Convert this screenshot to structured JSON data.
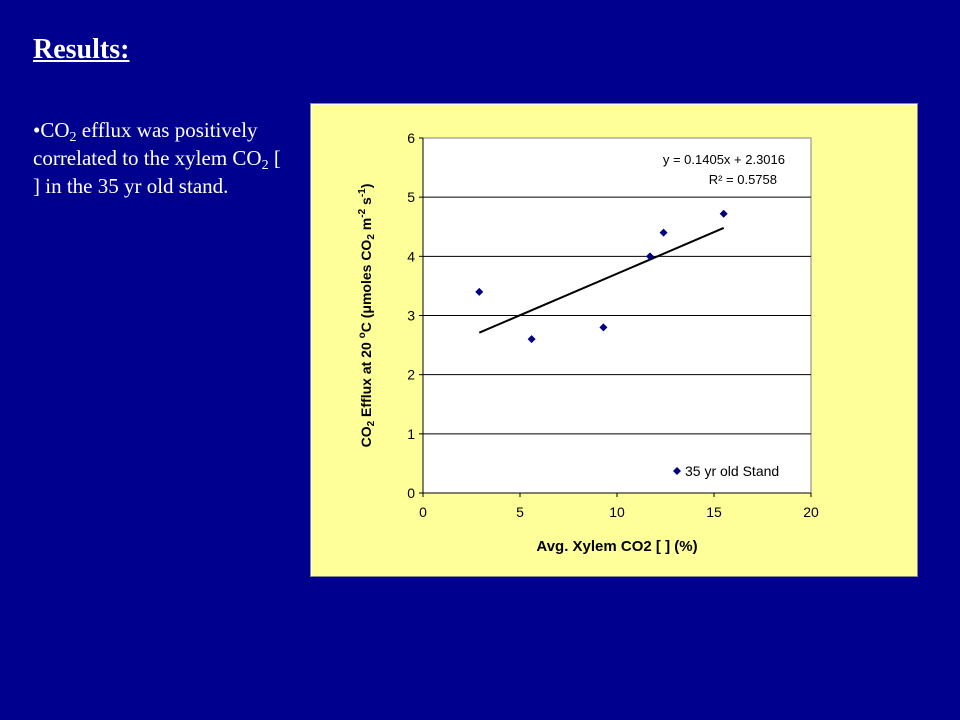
{
  "slide": {
    "title": "Results:",
    "bullet": {
      "marker": "•",
      "parts": [
        "CO",
        "2",
        " efflux was positively correlated to the xylem CO",
        "2",
        "  [ ] in the 35 yr old stand."
      ]
    }
  },
  "colors": {
    "background": "#00008f",
    "plot_area": "#ffffff",
    "chart_frame": "#ffff99",
    "marker": "#000080",
    "trendline": "#000000"
  },
  "chart_data": {
    "type": "scatter",
    "xlabel": "Avg. Xylem CO2 [ ] (%)",
    "ylabel": "CO2 Efflux at 20 °C (μmoles CO2 m-2 s-1)",
    "ylabel_parts": [
      "CO",
      "2",
      " Efflux at 20 ",
      "o",
      "C (",
      "μ",
      "moles CO",
      "2",
      " m",
      "-2",
      " s",
      "-1",
      ")"
    ],
    "xlim": [
      0,
      20
    ],
    "ylim": [
      0,
      6
    ],
    "xticks": [
      "0",
      "5",
      "10",
      "15",
      "20"
    ],
    "yticks": [
      "0",
      "1",
      "2",
      "3",
      "4",
      "5",
      "6"
    ],
    "grid": "horizontal",
    "legend_position": "bottom-right",
    "legend_label": "35 yr old Stand",
    "series": [
      {
        "name": "35 yr old Stand",
        "marker": "diamond",
        "x": [
          2.9,
          5.6,
          9.3,
          11.7,
          12.4,
          15.5
        ],
        "y": [
          3.4,
          2.6,
          2.8,
          4.0,
          4.4,
          4.72
        ]
      }
    ],
    "trendline": {
      "slope": 0.1405,
      "intercept": 2.3016,
      "x_range": [
        2.9,
        15.5
      ],
      "equation": "y = 0.1405x + 2.3016",
      "r2": "R² = 0.5758"
    }
  }
}
